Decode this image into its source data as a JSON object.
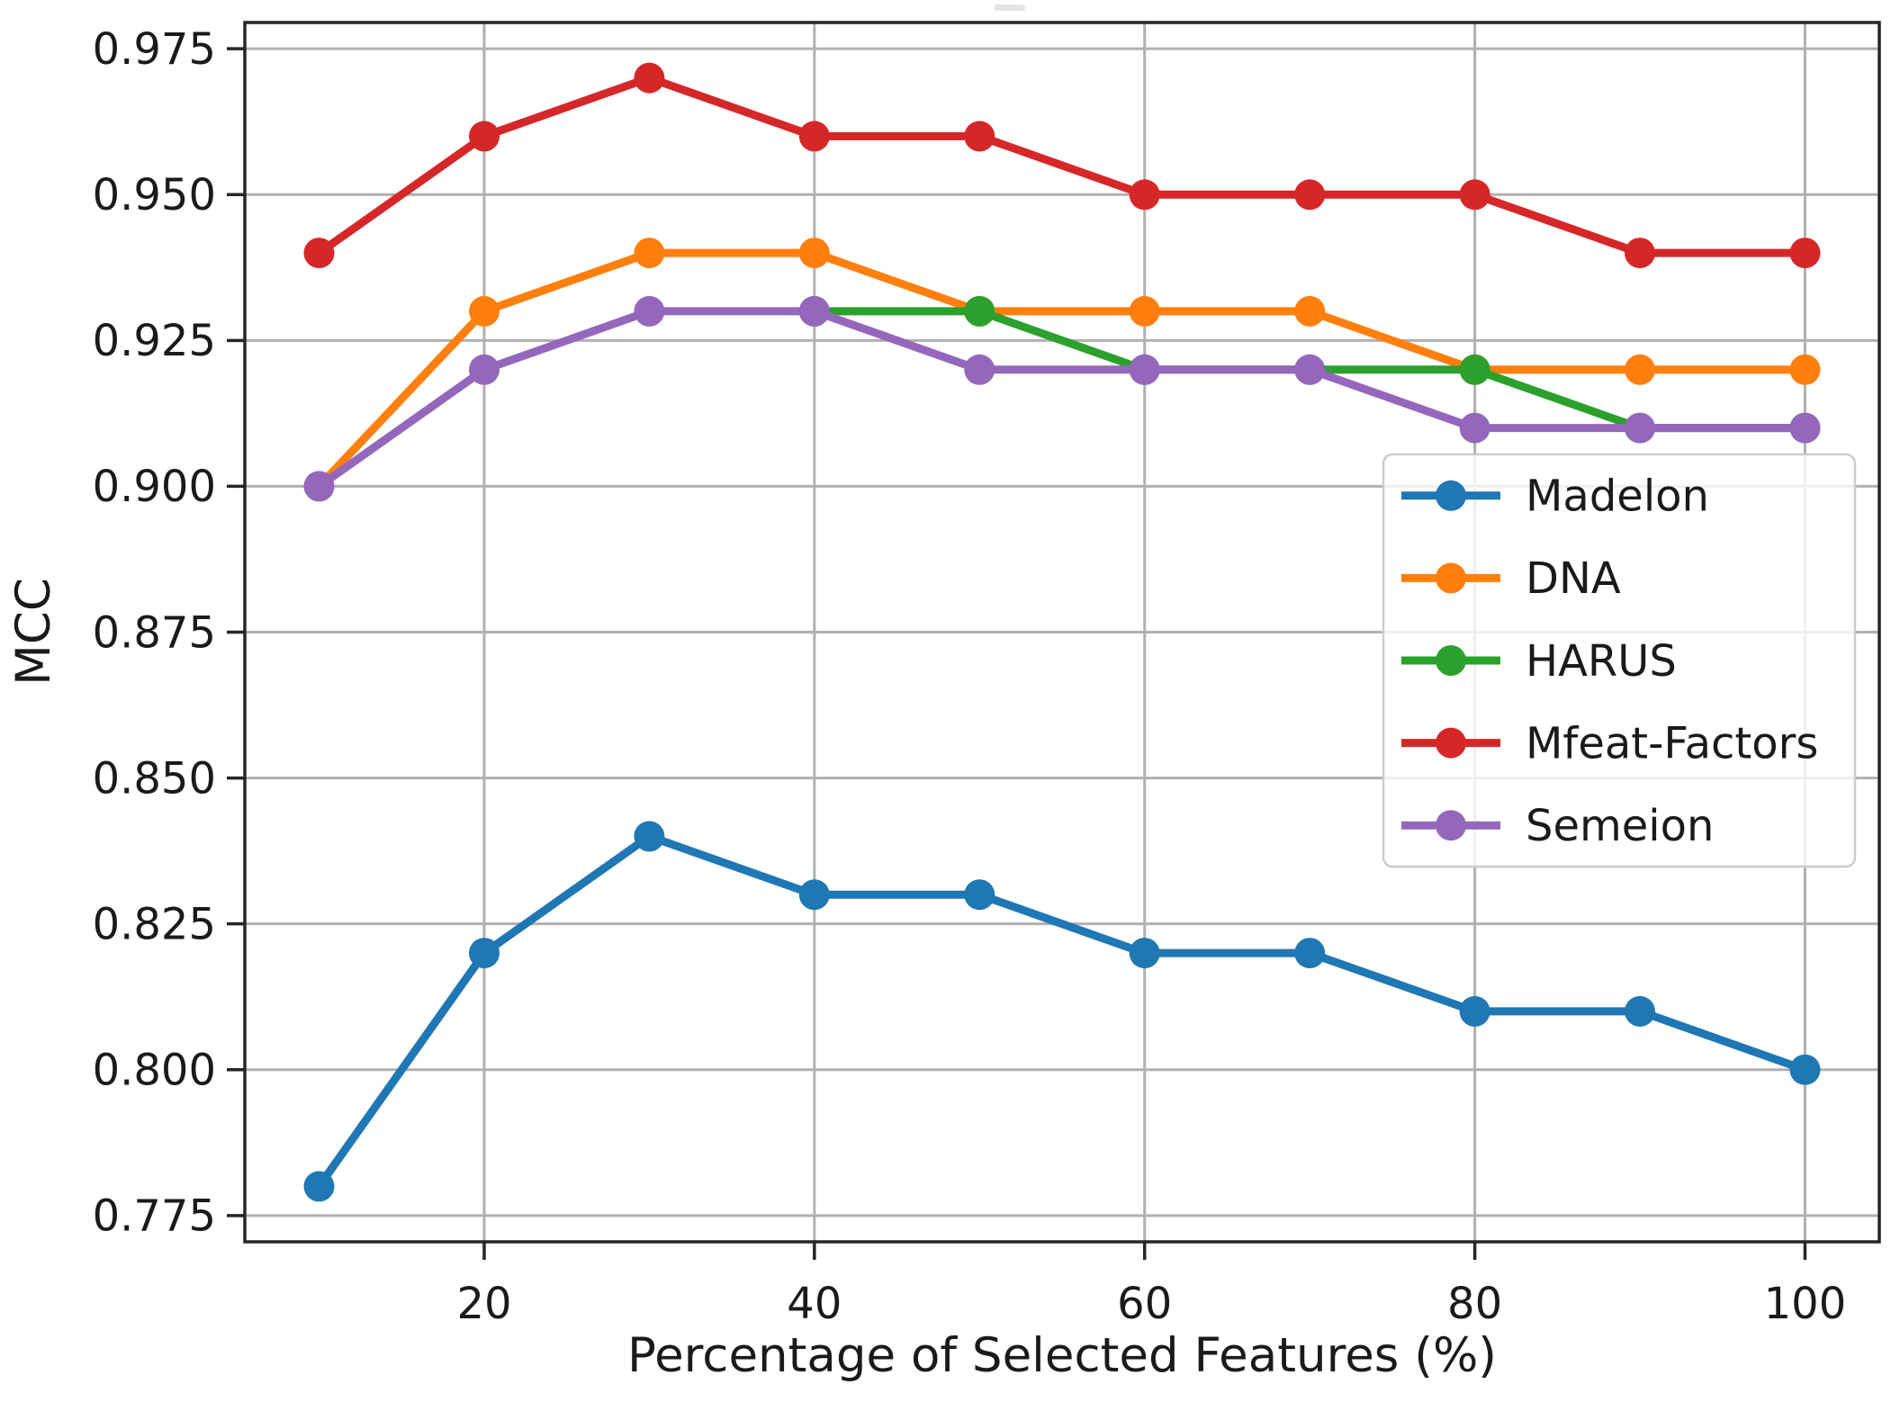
{
  "chart_data": {
    "type": "line",
    "title": "",
    "xlabel": "Percentage of Selected Features (%)",
    "ylabel": "MCC",
    "x": [
      10,
      20,
      30,
      40,
      50,
      60,
      70,
      80,
      90,
      100
    ],
    "x_ticks": [
      20,
      40,
      60,
      80,
      100
    ],
    "y_ticks": [
      0.975,
      0.95,
      0.925,
      0.9,
      0.875,
      0.85,
      0.825,
      0.8,
      0.775
    ],
    "xlim": [
      5.5,
      104.5
    ],
    "ylim": [
      0.7705,
      0.9795
    ],
    "grid": true,
    "marker": "circle",
    "grid_color": "#b0b0b0",
    "spine_color": "#262626",
    "text_color": "#1a1a1a",
    "legend": {
      "location": "center right",
      "border_color": "#cccccc",
      "background": "rgba(255,255,255,0.8)"
    },
    "series": [
      {
        "name": "Madelon",
        "color": "#1f77b4",
        "values": [
          0.78,
          0.82,
          0.84,
          0.83,
          0.83,
          0.82,
          0.82,
          0.81,
          0.81,
          0.8
        ]
      },
      {
        "name": "DNA",
        "color": "#ff7f0e",
        "values": [
          0.9,
          0.93,
          0.94,
          0.94,
          0.93,
          0.93,
          0.93,
          0.92,
          0.92,
          0.92
        ]
      },
      {
        "name": "HARUS",
        "color": "#2ca02c",
        "values": [
          null,
          null,
          null,
          0.93,
          0.93,
          0.92,
          0.92,
          0.92,
          0.91,
          0.91
        ]
      },
      {
        "name": "Mfeat-Factors",
        "color": "#d62728",
        "values": [
          0.94,
          0.96,
          0.97,
          0.96,
          0.96,
          0.95,
          0.95,
          0.95,
          0.94,
          0.94
        ]
      },
      {
        "name": "Semeion",
        "color": "#9467bd",
        "values": [
          0.9,
          0.92,
          0.93,
          0.93,
          0.92,
          0.92,
          0.92,
          0.91,
          0.91,
          0.91
        ]
      }
    ]
  }
}
